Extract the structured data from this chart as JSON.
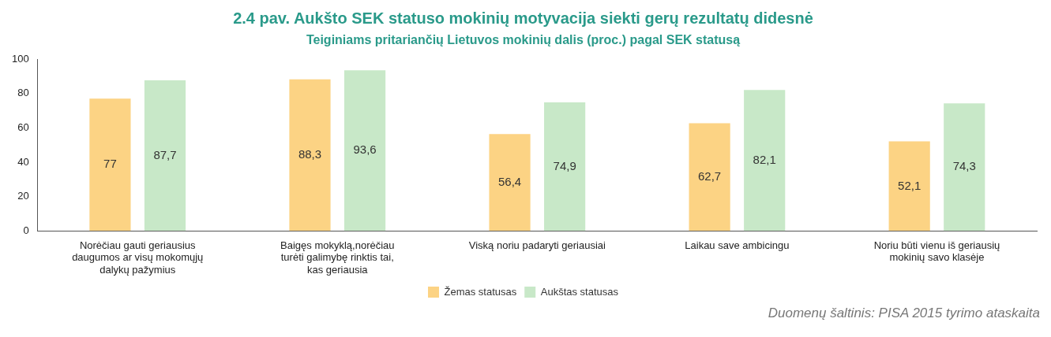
{
  "chart_data": {
    "type": "bar",
    "title": "2.4 pav. Aukšto SEK statuso mokinių motyvacija siekti gerų rezultatų didesnė",
    "subtitle": "Teiginiams pritariančių Lietuvos mokinių dalis (proc.) pagal SEK statusą",
    "categories": [
      "Norėčiau gauti geriausius daugumos ar visų mokomųjų dalykų pažymius",
      "Baigęs mokyklą,norėčiau turėti galimybę rinktis tai, kas geriausia",
      "Viską noriu padaryti geriausiai",
      "Laikau save ambicingu",
      "Noriu būti vienu iš geriausių mokinių savo klasėje"
    ],
    "series": [
      {
        "name": "Žemas statusas",
        "color": "#fcd384",
        "values": [
          77,
          88.3,
          56.4,
          62.7,
          52.1
        ],
        "value_labels": [
          "77",
          "88,3",
          "56,4",
          "62,7",
          "52,1"
        ]
      },
      {
        "name": "Aukštas statusas",
        "color": "#c8e8c8",
        "values": [
          87.7,
          93.6,
          74.9,
          82.1,
          74.3
        ],
        "value_labels": [
          "87,7",
          "93,6",
          "74,9",
          "82,1",
          "74,3"
        ]
      }
    ],
    "ylim": [
      0,
      100
    ],
    "yticks": [
      0,
      20,
      40,
      60,
      80,
      100
    ],
    "grid": false,
    "legend": "bottom",
    "annotations": [
      "Duomenų šaltinis: PISA 2015 tyrimo ataskaita"
    ]
  }
}
